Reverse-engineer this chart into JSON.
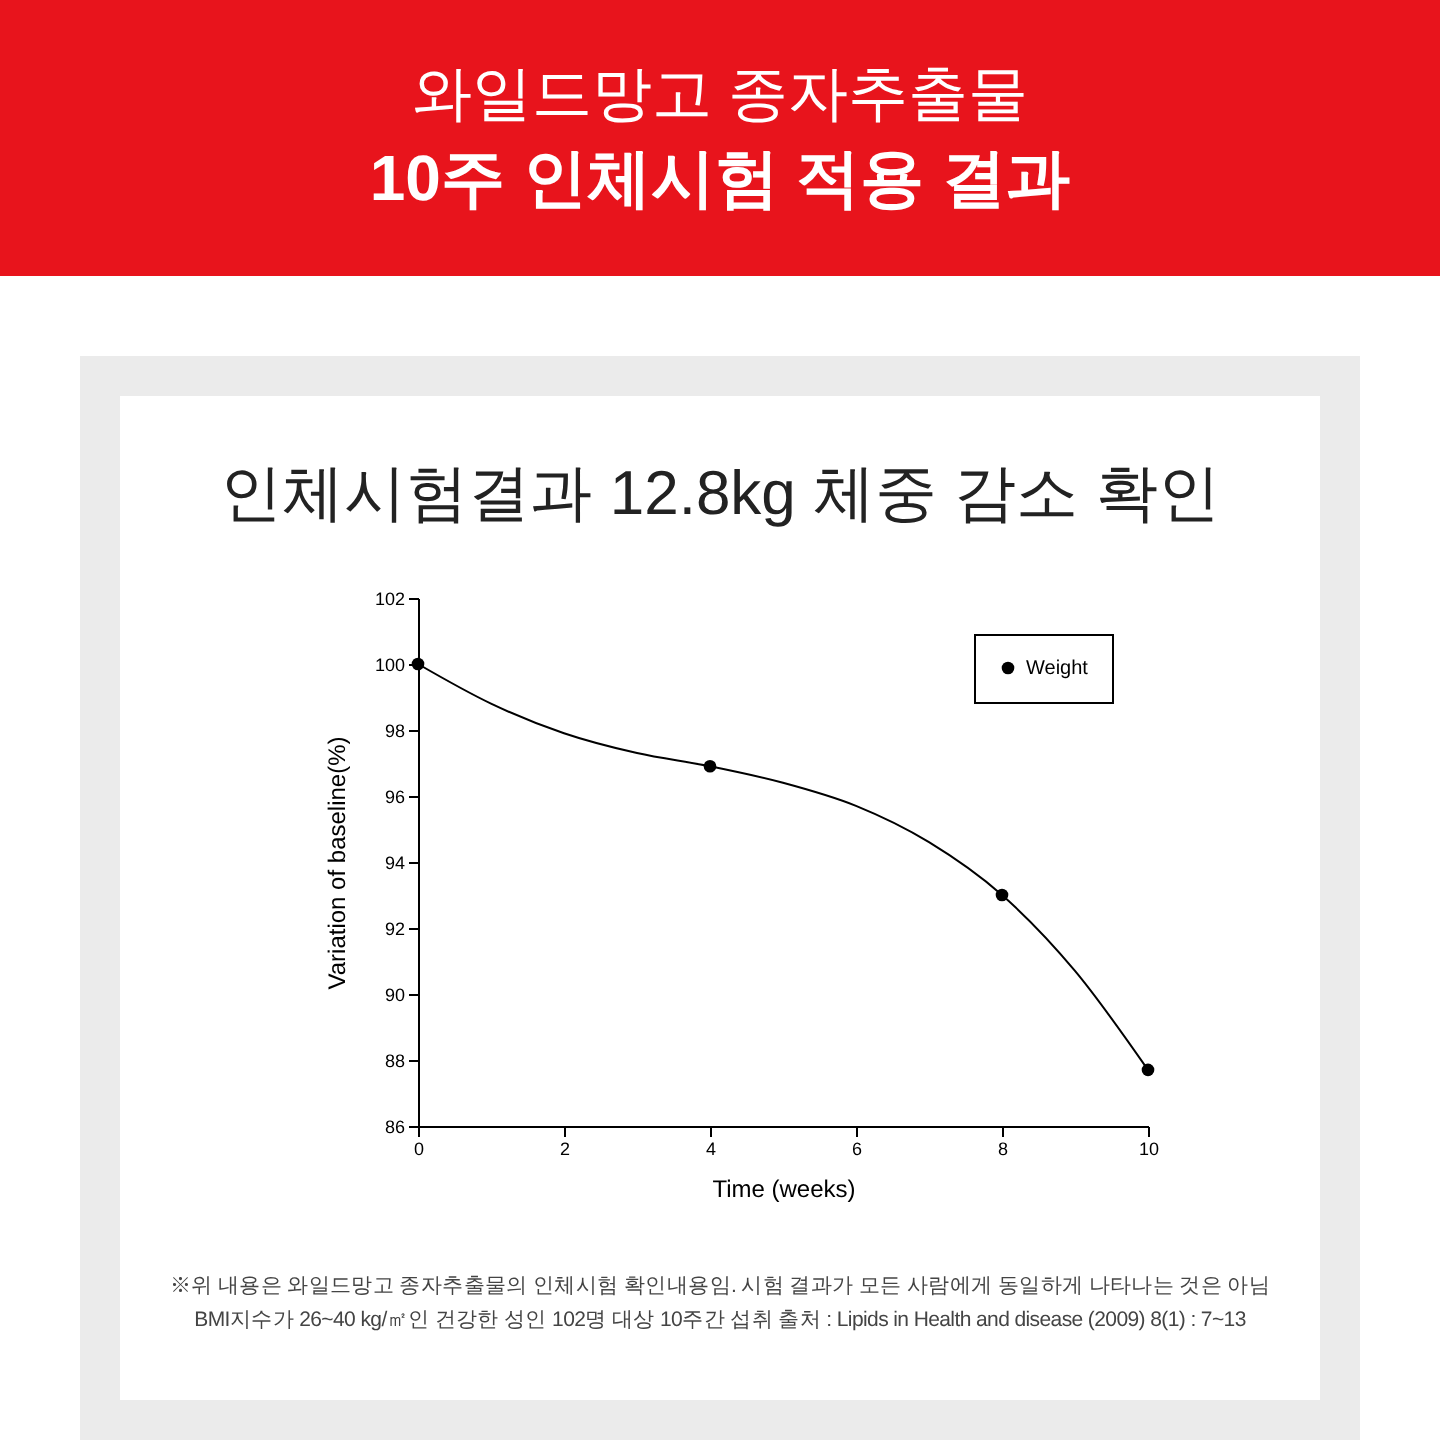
{
  "chart_data": {
    "type": "scatter",
    "title": "와일드망고 종자추출물",
    "subtitle": "10주 인체시험 적용 결과",
    "xlabel": "Time (weeks)",
    "ylabel": "Variation of baseline(%)",
    "annotations": [
      "인체시험결과 12.8kg 체중 감소 확인",
      "※위 내용은 와일드망고 종자추출물의 인체시험 확인내용임. 시험 결과가 모든 사람에게 동일하게 나타나는 것은 아님",
      "BMI지수가 26~40 kg/㎡인 건강한 성인 102명 대상 10주간 섭취  출처 : Lipids in Health and disease (2009) 8(1) : 7~13"
    ],
    "series": [
      {
        "name": "Weight",
        "marker": "circle",
        "color": "#000000",
        "x": [
          0,
          4,
          8,
          10
        ],
        "values": [
          100,
          96.9,
          93.0,
          87.7
        ]
      },
      {
        "type": "line",
        "color": "#000000",
        "x": [
          0,
          1,
          2,
          3,
          4,
          5,
          6,
          7,
          8,
          9,
          10
        ],
        "values": [
          100,
          98.8,
          97.9,
          97.3,
          96.9,
          96.4,
          95.7,
          94.6,
          93.0,
          90.7,
          87.7
        ]
      }
    ],
    "xlim": [
      0,
      10
    ],
    "xticks": [
      0,
      2,
      4,
      6,
      8,
      10
    ],
    "ylim": [
      86,
      102
    ],
    "yticks": [
      86,
      88,
      90,
      92,
      94,
      96,
      98,
      100,
      102
    ],
    "grid": false,
    "legend": "top right",
    "line_style": "solid"
  }
}
